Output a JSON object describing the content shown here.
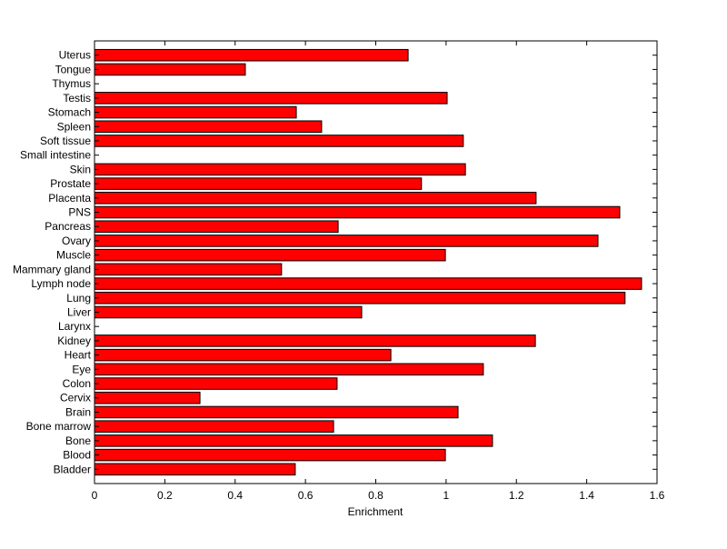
{
  "chart_data": {
    "type": "bar",
    "orientation": "horizontal",
    "title": "",
    "xlabel": "Enrichment",
    "ylabel": "",
    "xlim": [
      0,
      1.6
    ],
    "xticks": [
      0,
      0.2,
      0.4,
      0.6,
      0.8,
      1,
      1.2,
      1.4,
      1.6
    ],
    "xtick_labels": [
      "0",
      "0.2",
      "0.4",
      "0.6",
      "0.8",
      "1",
      "1.2",
      "1.4",
      "1.6"
    ],
    "grid": false,
    "bar_color": "#ff0000",
    "edge_color": "#000000",
    "categories": [
      "Bladder",
      "Blood",
      "Bone",
      "Bone marrow",
      "Brain",
      "Cervix",
      "Colon",
      "Eye",
      "Heart",
      "Kidney",
      "Larynx",
      "Liver",
      "Lung",
      "Lymph node",
      "Mammary gland",
      "Muscle",
      "Ovary",
      "Pancreas",
      "PNS",
      "Placenta",
      "Prostate",
      "Skin",
      "Small intestine",
      "Soft tissue",
      "Spleen",
      "Stomach",
      "Testis",
      "Thymus",
      "Tongue",
      "Uterus"
    ],
    "values": [
      0.571,
      0.998,
      1.132,
      0.68,
      1.034,
      0.3,
      0.69,
      1.106,
      0.843,
      1.254,
      0,
      0.76,
      1.509,
      1.556,
      0.532,
      0.998,
      1.432,
      0.693,
      1.494,
      1.256,
      0.93,
      1.055,
      0,
      1.049,
      0.646,
      0.574,
      1.003,
      0,
      0.429,
      0.892
    ]
  }
}
